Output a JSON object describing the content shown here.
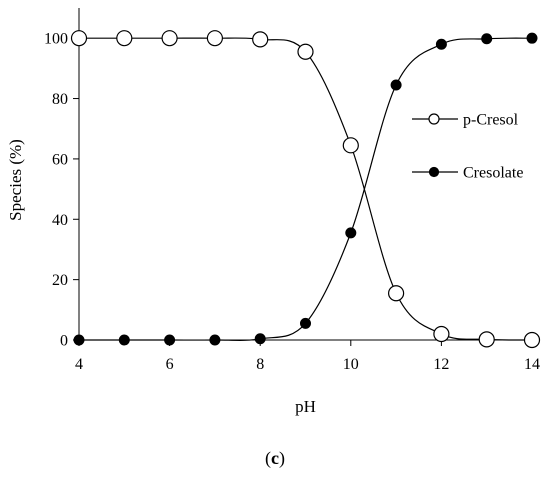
{
  "caption": {
    "open": "(",
    "letter": "c",
    "close": ")"
  },
  "chart_data": {
    "type": "line",
    "title": "",
    "xlabel": "pH",
    "ylabel": "Species (%)",
    "xlim": [
      4,
      14
    ],
    "ylim": [
      0,
      110
    ],
    "xticks": [
      4,
      6,
      8,
      10,
      12,
      14
    ],
    "yticks": [
      0,
      20,
      40,
      60,
      80,
      100
    ],
    "grid": false,
    "legend_position": "right",
    "x": [
      4,
      5,
      6,
      7,
      8,
      9,
      10,
      11,
      12,
      13,
      14
    ],
    "series": [
      {
        "name": "p-Cresol",
        "marker": "open-circle",
        "color": "#000000",
        "values": [
          100,
          100,
          100,
          100,
          99.6,
          95.5,
          64.5,
          15.5,
          2,
          0.2,
          0
        ]
      },
      {
        "name": "Cresolate",
        "marker": "filled-circle",
        "color": "#000000",
        "values": [
          0,
          0,
          0,
          0,
          0.4,
          5.5,
          35.5,
          84.5,
          98,
          99.8,
          100
        ]
      }
    ]
  }
}
